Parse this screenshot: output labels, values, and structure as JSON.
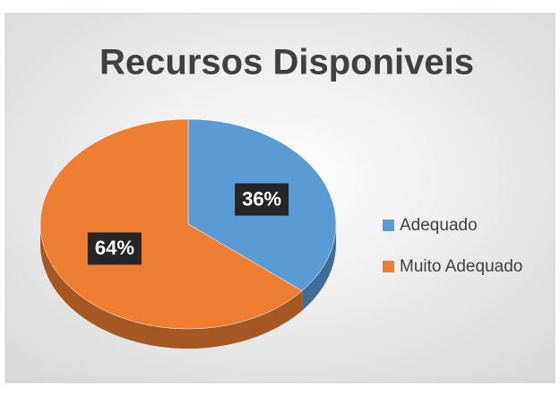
{
  "chart_data": {
    "type": "pie3d",
    "title": "Recursos Disponiveis",
    "categories": [
      "Adequado",
      "Muito Adequado"
    ],
    "values": [
      36,
      64
    ],
    "value_labels": [
      "36%",
      "64%"
    ],
    "colors": [
      "#5b9bd5",
      "#ed7d31"
    ],
    "legend": "right"
  }
}
